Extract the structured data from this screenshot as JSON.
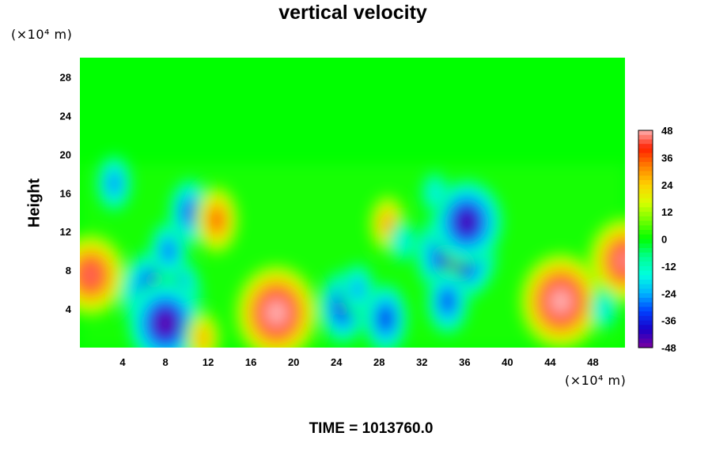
{
  "chart_data": {
    "type": "heatmap",
    "title": "vertical velocity",
    "ylabel": "Height",
    "y_unit": "(×10⁴ m)",
    "x_unit": "(×10⁴ m)",
    "time_label": "TIME = 1013760.0",
    "xlim": [
      0,
      51
    ],
    "ylim": [
      0,
      30
    ],
    "x_ticks": [
      4,
      8,
      12,
      16,
      20,
      24,
      28,
      32,
      36,
      40,
      44,
      48
    ],
    "y_ticks": [
      4,
      8,
      12,
      16,
      20,
      24,
      28
    ],
    "colorbar": {
      "min": -48,
      "max": 48,
      "ticks": [
        48,
        36,
        24,
        12,
        0,
        -12,
        -24,
        -36,
        -48
      ]
    },
    "background_value": 0,
    "features": [
      {
        "x": 1.0,
        "y": 7.5,
        "value": 44
      },
      {
        "x": 3.2,
        "y": 17.0,
        "value": -28
      },
      {
        "x": 7.6,
        "y": 5.5,
        "value": -50
      },
      {
        "x": 8.0,
        "y": 2.5,
        "value": -46
      },
      {
        "x": 8.3,
        "y": 10.0,
        "value": -30
      },
      {
        "x": 10.3,
        "y": 14.0,
        "value": -34
      },
      {
        "x": 12.8,
        "y": 13.2,
        "value": 36
      },
      {
        "x": 11.5,
        "y": 1.0,
        "value": 28
      },
      {
        "x": 18.4,
        "y": 3.6,
        "value": 52
      },
      {
        "x": 24.6,
        "y": 4.2,
        "value": -38
      },
      {
        "x": 26.0,
        "y": 6.0,
        "value": -26
      },
      {
        "x": 28.8,
        "y": 12.8,
        "value": 30
      },
      {
        "x": 28.6,
        "y": 3.0,
        "value": -36
      },
      {
        "x": 30.2,
        "y": 11.0,
        "value": -20
      },
      {
        "x": 35.2,
        "y": 9.6,
        "value": -50
      },
      {
        "x": 36.2,
        "y": 13.0,
        "value": -44
      },
      {
        "x": 34.4,
        "y": 4.8,
        "value": -34
      },
      {
        "x": 33.2,
        "y": 16.0,
        "value": -20
      },
      {
        "x": 45.0,
        "y": 4.8,
        "value": 52
      },
      {
        "x": 51.0,
        "y": 9.0,
        "value": 46
      },
      {
        "x": 49.0,
        "y": 4.0,
        "value": -20
      }
    ]
  }
}
